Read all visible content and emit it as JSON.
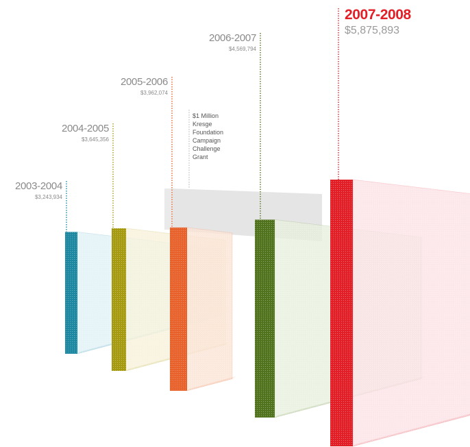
{
  "chart_data": {
    "type": "bar",
    "categories": [
      "2003-2004",
      "2004-2005",
      "2005-2006",
      "2006-2007",
      "2007-2008"
    ],
    "series": [
      {
        "values": [
          3243934,
          3645356,
          3962074,
          4569794,
          5875893
        ]
      }
    ],
    "value_labels": [
      "$3,243,934",
      "$3,645,356",
      "$3,962,074",
      "$4,569,794",
      "$5,875,893"
    ],
    "colors": [
      "#1b87a1",
      "#a69a11",
      "#e8602a",
      "#52731e",
      "#e21f26"
    ],
    "side_colors": [
      "#dff1f6",
      "#f7f1d8",
      "#fbe3d4",
      "#e7efdd",
      "#fbe0e6"
    ],
    "annotation": {
      "lines": [
        "$1 Million",
        "Kresge",
        "Foundation",
        "Campaign",
        "Challenge",
        "Grant"
      ],
      "color": "#dcdcdc"
    },
    "title": "",
    "xlabel": "",
    "ylabel": "",
    "grid": false
  }
}
